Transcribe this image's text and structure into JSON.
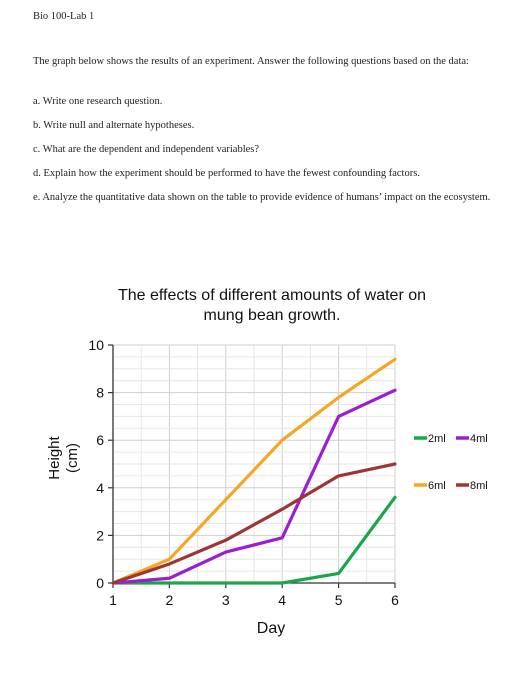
{
  "document": {
    "header": "Bio 100-Lab 1",
    "intro": "The graph below shows the results of an experiment. Answer the following questions based on the data:",
    "questions": [
      "a. Write one research question.",
      "b. Write null and alternate hypotheses.",
      "c. What are the dependent and independent variables?",
      "d. Explain how the experiment should be performed to have the fewest confounding factors.",
      "e. Analyze the quantitative data shown on the table to provide evidence of humans’ impact on the ecosystem."
    ]
  },
  "chart_data": {
    "type": "line",
    "title_line1": "The effects of different amounts of water on",
    "title_line2": "mung bean growth.",
    "xlabel": "Day",
    "ylabel_line1": "Height",
    "ylabel_line2": "(cm)",
    "x": [
      1,
      2,
      3,
      4,
      5,
      6
    ],
    "xlim": [
      1,
      6
    ],
    "ylim": [
      0,
      10
    ],
    "x_ticks": [
      "1",
      "2",
      "3",
      "4",
      "5",
      "6"
    ],
    "y_ticks": [
      "0",
      "2",
      "4",
      "6",
      "8",
      "10"
    ],
    "grid": true,
    "legend_position": "right",
    "series": [
      {
        "name": "2ml",
        "color": "#1aa64a",
        "values": [
          0,
          0,
          0,
          0,
          0.4,
          3.6
        ]
      },
      {
        "name": "4ml",
        "color": "#9b1fd1",
        "values": [
          0,
          0.2,
          1.3,
          1.9,
          7.0,
          8.1
        ]
      },
      {
        "name": "6ml",
        "color": "#f5a623",
        "values": [
          0,
          1.0,
          3.5,
          6.0,
          7.8,
          9.4
        ]
      },
      {
        "name": "8ml",
        "color": "#9c3533",
        "values": [
          0,
          0.8,
          1.8,
          3.1,
          4.5,
          5.0
        ]
      }
    ]
  }
}
